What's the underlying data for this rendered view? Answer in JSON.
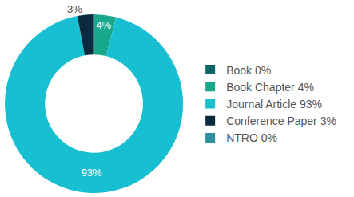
{
  "chart_data": {
    "type": "pie",
    "categories": [
      "Book 0%",
      "Book Chapter 4%",
      "Journal Article 93%",
      "Conference Paper 3%",
      "NTRO 0%"
    ],
    "values": [
      0,
      4,
      93,
      3,
      0
    ],
    "value_labels": [
      null,
      "4%",
      "93%",
      "3%",
      null
    ],
    "colors": [
      "#0b6468",
      "#1aa88c",
      "#18bfd1",
      "#0a2b3f",
      "#2a90a2"
    ],
    "data_labels": true,
    "legend": "right"
  }
}
